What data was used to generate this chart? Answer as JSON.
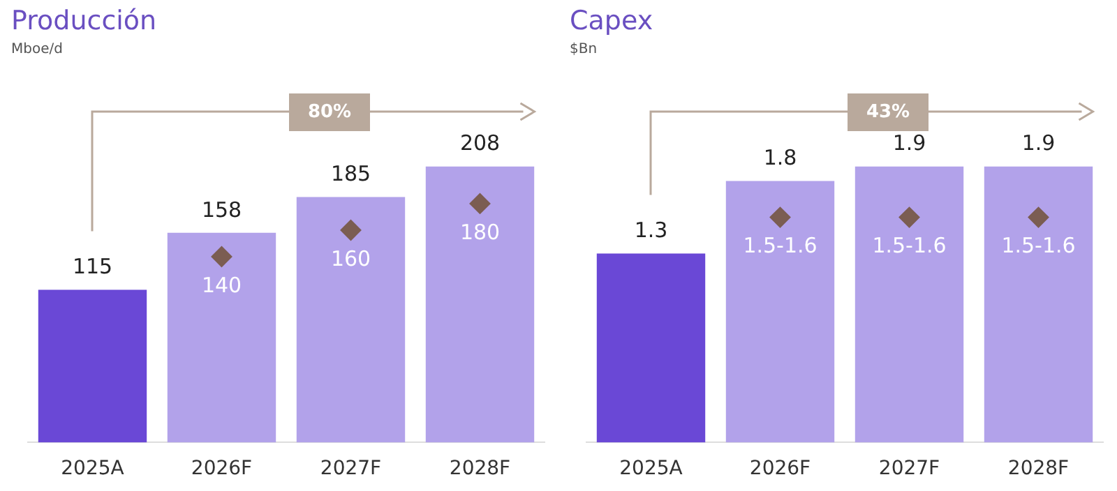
{
  "chart_data": [
    {
      "type": "bar",
      "title": "Producción",
      "subtitle": "Mboe/d",
      "categories": [
        "2025A",
        "2026F",
        "2027F",
        "2028F"
      ],
      "series": [
        {
          "type": "bar",
          "colors": [
            "#6a48d6",
            "#b2a2ea",
            "#b2a2ea",
            "#b2a2ea"
          ],
          "values": [
            115,
            158,
            185,
            208
          ]
        },
        {
          "type": "scatter",
          "x": [
            "2026F",
            "2027F",
            "2028F"
          ],
          "color": "#7b5d52",
          "values": [
            140,
            160,
            180
          ],
          "value_labels": [
            "140",
            "160",
            "180"
          ]
        }
      ],
      "marker": "diamond",
      "data_labels": true,
      "annotations": [
        "80%"
      ],
      "legend": false,
      "grid": false
    },
    {
      "type": "bar",
      "title": "Capex",
      "subtitle": "$Bn",
      "categories": [
        "2025A",
        "2026F",
        "2027F",
        "2028F"
      ],
      "series": [
        {
          "type": "bar",
          "colors": [
            "#6a48d6",
            "#b2a2ea",
            "#b2a2ea",
            "#b2a2ea"
          ],
          "values": [
            1.3,
            1.8,
            1.9,
            1.9
          ]
        },
        {
          "type": "scatter",
          "x": [
            "2026F",
            "2027F",
            "2028F"
          ],
          "color": "#7b5d52",
          "values": [
            1.55,
            1.55,
            1.55
          ],
          "value_labels": [
            "1.5-1.6",
            "1.5-1.6",
            "1.5-1.6"
          ]
        }
      ],
      "marker": "diamond",
      "data_labels": true,
      "annotations": [
        "43%"
      ],
      "legend": false,
      "grid": false
    }
  ]
}
